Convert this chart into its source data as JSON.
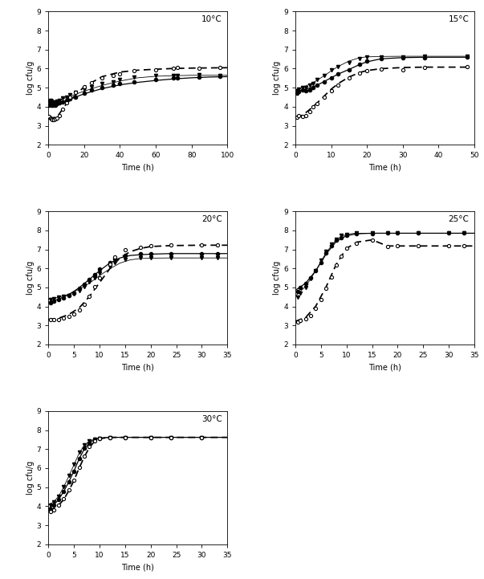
{
  "panels": [
    {
      "temp": "10°C",
      "xlim": [
        0,
        100
      ],
      "xticks": [
        0,
        20,
        40,
        60,
        80,
        100
      ],
      "ylim": [
        2,
        9
      ],
      "yticks": [
        2,
        3,
        4,
        5,
        6,
        7,
        8,
        9
      ],
      "trial1_x": [
        0.5,
        1,
        1.5,
        2,
        3,
        4,
        5,
        6,
        8,
        10,
        12,
        15,
        20,
        24,
        30,
        36,
        40,
        48,
        60,
        70,
        72,
        84,
        96
      ],
      "trial1_y": [
        4.1,
        4.15,
        4.1,
        4.1,
        4.08,
        4.1,
        4.15,
        4.2,
        4.25,
        4.32,
        4.42,
        4.52,
        4.72,
        4.88,
        5.02,
        5.12,
        5.2,
        5.32,
        5.45,
        5.52,
        5.52,
        5.56,
        5.6
      ],
      "trial2_x": [
        0.5,
        1,
        1.5,
        2,
        3,
        4,
        5,
        6,
        8,
        10,
        12,
        15,
        20,
        24,
        30,
        36,
        40,
        48,
        60,
        70,
        72,
        84,
        96
      ],
      "trial2_y": [
        3.5,
        3.4,
        3.35,
        3.3,
        3.3,
        3.35,
        3.42,
        3.55,
        3.85,
        4.2,
        4.5,
        4.75,
        5.05,
        5.25,
        5.52,
        5.62,
        5.72,
        5.88,
        5.95,
        6.02,
        6.05,
        6.02,
        6.05
      ],
      "trial3_x": [
        0.5,
        1,
        1.5,
        2,
        3,
        4,
        5,
        6,
        8,
        10,
        12,
        15,
        20,
        24,
        30,
        36,
        40,
        48,
        60,
        70,
        72,
        84,
        96
      ],
      "trial3_y": [
        4.3,
        4.35,
        4.3,
        4.25,
        4.2,
        4.25,
        4.3,
        4.35,
        4.45,
        4.52,
        4.62,
        4.75,
        4.92,
        5.06,
        5.22,
        5.32,
        5.42,
        5.55,
        5.62,
        5.65,
        5.65,
        5.68,
        5.65
      ],
      "fit1_x": [
        0,
        5,
        10,
        20,
        30,
        40,
        50,
        60,
        70,
        80,
        90,
        100
      ],
      "fit1_y": [
        4.1,
        4.15,
        4.32,
        4.68,
        4.95,
        5.15,
        5.28,
        5.38,
        5.46,
        5.52,
        5.56,
        5.58
      ],
      "fit2_x": [
        0,
        5,
        10,
        20,
        30,
        40,
        50,
        60,
        70,
        80,
        90,
        100
      ],
      "fit2_y": [
        3.35,
        3.48,
        4.15,
        5.05,
        5.58,
        5.82,
        5.92,
        5.97,
        6.01,
        6.03,
        6.04,
        6.05
      ],
      "fit3_x": [
        0,
        5,
        10,
        20,
        30,
        40,
        50,
        60,
        70,
        80,
        90,
        100
      ],
      "fit3_y": [
        4.25,
        4.32,
        4.48,
        4.82,
        5.12,
        5.35,
        5.52,
        5.6,
        5.63,
        5.65,
        5.65,
        5.65
      ]
    },
    {
      "temp": "15°C",
      "xlim": [
        0,
        50
      ],
      "xticks": [
        0,
        10,
        20,
        30,
        40,
        50
      ],
      "ylim": [
        2,
        9
      ],
      "yticks": [
        2,
        3,
        4,
        5,
        6,
        7,
        8,
        9
      ],
      "trial1_x": [
        0.5,
        1,
        2,
        3,
        4,
        5,
        6,
        8,
        10,
        12,
        15,
        18,
        20,
        24,
        30,
        36,
        48
      ],
      "trial1_y": [
        4.7,
        4.8,
        4.88,
        4.85,
        4.9,
        5.0,
        5.12,
        5.32,
        5.52,
        5.72,
        5.95,
        6.22,
        6.38,
        6.52,
        6.58,
        6.58,
        6.62
      ],
      "trial2_x": [
        0.5,
        1,
        2,
        3,
        4,
        5,
        6,
        8,
        10,
        12,
        15,
        18,
        20,
        24,
        30,
        36,
        48
      ],
      "trial2_y": [
        3.45,
        3.52,
        3.5,
        3.55,
        3.75,
        3.98,
        4.18,
        4.52,
        4.82,
        5.12,
        5.52,
        5.78,
        5.88,
        5.98,
        5.95,
        6.05,
        6.12
      ],
      "trial3_x": [
        0.5,
        1,
        2,
        3,
        4,
        5,
        6,
        8,
        10,
        12,
        15,
        18,
        20,
        24,
        30,
        36,
        48
      ],
      "trial3_y": [
        4.82,
        4.92,
        5.02,
        5.02,
        5.12,
        5.22,
        5.42,
        5.62,
        5.92,
        6.12,
        6.32,
        6.52,
        6.62,
        6.62,
        6.62,
        6.65,
        6.65
      ],
      "fit1_x": [
        0,
        2,
        4,
        6,
        8,
        10,
        12,
        15,
        18,
        20,
        24,
        30,
        36,
        48
      ],
      "fit1_y": [
        4.75,
        4.88,
        4.98,
        5.12,
        5.32,
        5.52,
        5.72,
        5.96,
        6.22,
        6.36,
        6.52,
        6.58,
        6.6,
        6.6
      ],
      "fit2_x": [
        0,
        2,
        4,
        6,
        8,
        10,
        12,
        15,
        18,
        20,
        24,
        30,
        36,
        48
      ],
      "fit2_y": [
        3.48,
        3.55,
        3.85,
        4.18,
        4.55,
        4.92,
        5.22,
        5.56,
        5.8,
        5.9,
        6.0,
        6.06,
        6.08,
        6.08
      ],
      "fit3_x": [
        0,
        2,
        4,
        6,
        8,
        10,
        12,
        15,
        18,
        20,
        24,
        30,
        36,
        48
      ],
      "fit3_y": [
        4.85,
        5.02,
        5.18,
        5.38,
        5.62,
        5.88,
        6.12,
        6.4,
        6.58,
        6.62,
        6.64,
        6.65,
        6.65,
        6.65
      ]
    },
    {
      "temp": "20°C",
      "xlim": [
        0,
        35
      ],
      "xticks": [
        0,
        5,
        10,
        15,
        20,
        25,
        30,
        35
      ],
      "ylim": [
        2,
        9
      ],
      "yticks": [
        2,
        3,
        4,
        5,
        6,
        7,
        8,
        9
      ],
      "trial1_x": [
        0.5,
        1,
        2,
        3,
        4,
        5,
        6,
        7,
        8,
        9,
        10,
        12,
        13,
        15,
        18,
        20,
        24,
        30,
        33
      ],
      "trial1_y": [
        4.2,
        4.28,
        4.38,
        4.45,
        4.58,
        4.72,
        4.95,
        5.18,
        5.42,
        5.68,
        5.98,
        6.32,
        6.52,
        6.68,
        6.75,
        6.78,
        6.78,
        6.78,
        6.78
      ],
      "trial2_x": [
        0.5,
        1,
        2,
        3,
        4,
        5,
        6,
        7,
        8,
        9,
        10,
        12,
        13,
        15,
        18,
        20,
        24,
        30,
        33
      ],
      "trial2_y": [
        3.3,
        3.3,
        3.32,
        3.38,
        3.48,
        3.62,
        3.82,
        4.12,
        4.52,
        5.02,
        5.52,
        6.22,
        6.62,
        6.98,
        7.12,
        7.18,
        7.22,
        7.22,
        7.22
      ],
      "trial3_x": [
        0.5,
        1,
        2,
        3,
        4,
        5,
        6,
        7,
        8,
        9,
        10,
        12,
        13,
        15,
        18,
        20,
        24,
        30,
        33
      ],
      "trial3_y": [
        4.35,
        4.42,
        4.48,
        4.52,
        4.58,
        4.68,
        4.82,
        5.02,
        5.28,
        5.52,
        5.75,
        6.08,
        6.32,
        6.48,
        6.55,
        6.55,
        6.55,
        6.55,
        6.55
      ],
      "fit1_x": [
        0,
        2,
        4,
        6,
        8,
        10,
        12,
        14,
        16,
        18,
        20,
        24,
        30,
        35
      ],
      "fit1_y": [
        4.22,
        4.38,
        4.62,
        4.98,
        5.42,
        5.88,
        6.28,
        6.55,
        6.68,
        6.72,
        6.75,
        6.78,
        6.78,
        6.78
      ],
      "fit2_x": [
        0,
        2,
        4,
        6,
        8,
        10,
        12,
        14,
        16,
        18,
        20,
        24,
        30,
        35
      ],
      "fit2_y": [
        3.32,
        3.38,
        3.58,
        3.92,
        4.52,
        5.25,
        5.98,
        6.55,
        6.88,
        7.05,
        7.15,
        7.2,
        7.22,
        7.22
      ],
      "fit3_x": [
        0,
        2,
        4,
        6,
        8,
        10,
        12,
        14,
        16,
        18,
        20,
        24,
        30,
        35
      ],
      "fit3_y": [
        4.38,
        4.48,
        4.65,
        4.9,
        5.22,
        5.62,
        5.98,
        6.28,
        6.45,
        6.52,
        6.54,
        6.55,
        6.55,
        6.55
      ]
    },
    {
      "temp": "25°C",
      "xlim": [
        0,
        35
      ],
      "xticks": [
        0,
        5,
        10,
        15,
        20,
        25,
        30,
        35
      ],
      "ylim": [
        2,
        9
      ],
      "yticks": [
        2,
        3,
        4,
        5,
        6,
        7,
        8,
        9
      ],
      "trial1_x": [
        0.5,
        1,
        2,
        3,
        4,
        5,
        6,
        7,
        8,
        9,
        10,
        12,
        15,
        18,
        20,
        24,
        30,
        33
      ],
      "trial1_y": [
        4.8,
        5.0,
        5.2,
        5.5,
        5.9,
        6.3,
        6.8,
        7.2,
        7.5,
        7.6,
        7.72,
        7.82,
        7.82,
        7.85,
        7.85,
        7.85,
        7.85,
        7.85
      ],
      "trial2_x": [
        0.5,
        1,
        2,
        3,
        4,
        5,
        6,
        7,
        8,
        9,
        10,
        12,
        15,
        18,
        20,
        24,
        30,
        33
      ],
      "trial2_y": [
        3.2,
        3.28,
        3.35,
        3.52,
        3.88,
        4.38,
        4.95,
        5.55,
        6.18,
        6.65,
        7.05,
        7.32,
        7.48,
        7.15,
        7.18,
        7.18,
        7.18,
        7.18
      ],
      "trial3_x": [
        0.5,
        1,
        2,
        3,
        4,
        5,
        6,
        7,
        8,
        9,
        10,
        12,
        15,
        18,
        20,
        24,
        30,
        33
      ],
      "trial3_y": [
        4.5,
        4.7,
        5.0,
        5.45,
        5.9,
        6.42,
        6.88,
        7.28,
        7.55,
        7.72,
        7.8,
        7.85,
        7.85,
        7.85,
        7.85,
        7.85,
        7.85,
        7.85
      ],
      "fit1_x": [
        0,
        2,
        4,
        6,
        8,
        10,
        12,
        15,
        18,
        20,
        24,
        30,
        35
      ],
      "fit1_y": [
        4.85,
        5.22,
        5.88,
        6.75,
        7.42,
        7.72,
        7.82,
        7.85,
        7.85,
        7.85,
        7.85,
        7.85,
        7.85
      ],
      "fit2_x": [
        0,
        2,
        4,
        6,
        8,
        10,
        12,
        15,
        18,
        20,
        24,
        30,
        35
      ],
      "fit2_y": [
        3.22,
        3.42,
        4.02,
        5.02,
        6.22,
        7.05,
        7.38,
        7.5,
        7.18,
        7.18,
        7.18,
        7.18,
        7.18
      ],
      "fit3_x": [
        0,
        2,
        4,
        6,
        8,
        10,
        12,
        15,
        18,
        20,
        24,
        30,
        35
      ],
      "fit3_y": [
        4.55,
        5.05,
        5.88,
        6.82,
        7.52,
        7.8,
        7.85,
        7.85,
        7.85,
        7.85,
        7.85,
        7.85,
        7.85
      ]
    },
    {
      "temp": "30°C",
      "xlim": [
        0,
        35
      ],
      "xticks": [
        0,
        5,
        10,
        15,
        20,
        25,
        30,
        35
      ],
      "ylim": [
        2,
        9
      ],
      "yticks": [
        2,
        3,
        4,
        5,
        6,
        7,
        8,
        9
      ],
      "trial1_x": [
        0.5,
        1,
        2,
        3,
        4,
        5,
        6,
        7,
        8,
        9,
        10,
        12,
        15,
        20,
        24,
        30
      ],
      "trial1_y": [
        3.85,
        4.05,
        4.35,
        4.78,
        5.28,
        5.85,
        6.52,
        7.05,
        7.32,
        7.52,
        7.58,
        7.62,
        7.62,
        7.62,
        7.62,
        7.62
      ],
      "trial2_x": [
        0.5,
        1,
        2,
        3,
        4,
        5,
        6,
        7,
        8,
        9,
        10,
        12,
        15,
        20,
        24,
        30
      ],
      "trial2_y": [
        3.72,
        3.82,
        4.05,
        4.38,
        4.85,
        5.38,
        6.05,
        6.62,
        7.12,
        7.42,
        7.55,
        7.62,
        7.62,
        7.62,
        7.62,
        7.62
      ],
      "trial3_x": [
        0.5,
        1,
        2,
        3,
        4,
        5,
        6,
        7,
        8,
        9,
        10,
        12,
        15,
        20,
        24,
        30
      ],
      "trial3_y": [
        4.05,
        4.22,
        4.52,
        5.02,
        5.62,
        6.22,
        6.85,
        7.22,
        7.42,
        7.52,
        7.58,
        7.62,
        7.62,
        7.62,
        7.62,
        7.62
      ],
      "fit1_x": [
        0,
        1,
        2,
        3,
        4,
        5,
        6,
        7,
        8,
        9,
        10,
        12,
        15,
        20,
        25,
        30,
        35
      ],
      "fit1_y": [
        3.88,
        4.05,
        4.35,
        4.78,
        5.28,
        5.85,
        6.48,
        7.0,
        7.32,
        7.5,
        7.58,
        7.62,
        7.62,
        7.62,
        7.62,
        7.62,
        7.62
      ],
      "fit2_x": [
        0,
        1,
        2,
        3,
        4,
        5,
        6,
        7,
        8,
        9,
        10,
        12,
        15,
        20,
        25,
        30,
        35
      ],
      "fit2_y": [
        3.75,
        3.88,
        4.05,
        4.35,
        4.82,
        5.35,
        6.0,
        6.58,
        7.08,
        7.4,
        7.55,
        7.62,
        7.62,
        7.62,
        7.62,
        7.62,
        7.62
      ],
      "fit3_x": [
        0,
        1,
        2,
        3,
        4,
        5,
        6,
        7,
        8,
        9,
        10,
        12,
        15,
        20,
        25,
        30,
        35
      ],
      "fit3_y": [
        4.08,
        4.22,
        4.52,
        5.02,
        5.58,
        6.18,
        6.78,
        7.2,
        7.42,
        7.52,
        7.58,
        7.62,
        7.62,
        7.62,
        7.62,
        7.62,
        7.62
      ]
    }
  ],
  "marker_color": "black",
  "line_color": "black",
  "marker_size": 3,
  "line_width": 0.9,
  "xlabel": "Time (h)",
  "ylabel": "log cfu/g",
  "bg_color": "white",
  "fig_bg": "white"
}
